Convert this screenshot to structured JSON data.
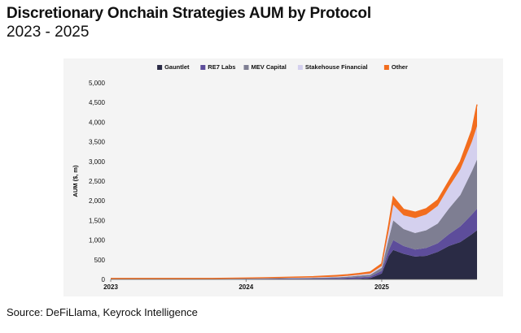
{
  "header": {
    "title": "Discretionary Onchain Strategies AUM by Protocol",
    "subtitle": "2023 - 2025"
  },
  "footer": {
    "source": "Source: DeFiLlama, Keyrock Intelligence"
  },
  "chart_data": {
    "type": "area",
    "stacked": true,
    "ylabel": "AUM ($, m)",
    "xlabel": "",
    "ylim": [
      0,
      5000
    ],
    "yticks": [
      0,
      500,
      1000,
      1500,
      2000,
      2500,
      3000,
      3500,
      4000,
      4500,
      5000
    ],
    "ytick_labels": [
      "0",
      "500",
      "1,000",
      "1,500",
      "2,000",
      "2,500",
      "3,000",
      "3,500",
      "4,000",
      "4,500",
      "5,000"
    ],
    "xlim": [
      "2023-01-01",
      "2025-09-15"
    ],
    "xticks": [
      "2023-01-01",
      "2024-01-01",
      "2025-01-01"
    ],
    "xtick_labels": [
      "2023",
      "2024",
      "2025"
    ],
    "grid": false,
    "legend_position": "top",
    "x": [
      "2023-01-01",
      "2023-07-01",
      "2023-10-01",
      "2024-01-01",
      "2024-04-01",
      "2024-07-01",
      "2024-09-01",
      "2024-10-01",
      "2024-11-01",
      "2024-12-01",
      "2025-01-01",
      "2025-01-20",
      "2025-02-01",
      "2025-03-01",
      "2025-04-01",
      "2025-05-01",
      "2025-06-01",
      "2025-07-01",
      "2025-08-01",
      "2025-09-01",
      "2025-09-15"
    ],
    "series": [
      {
        "name": "Gauntlet",
        "color": "#2a2b45",
        "values": [
          5,
          5,
          5,
          5,
          5,
          5,
          5,
          10,
          15,
          30,
          150,
          600,
          750,
          650,
          580,
          600,
          700,
          850,
          950,
          1150,
          1250
        ]
      },
      {
        "name": "RE7 Labs",
        "color": "#5d4d9b",
        "values": [
          5,
          5,
          5,
          10,
          15,
          20,
          25,
          30,
          40,
          40,
          70,
          150,
          250,
          200,
          180,
          200,
          220,
          300,
          400,
          500,
          550
        ]
      },
      {
        "name": "MEV Capital",
        "color": "#7e7e92",
        "values": [
          3,
          3,
          3,
          5,
          10,
          15,
          25,
          30,
          40,
          50,
          80,
          300,
          500,
          430,
          420,
          450,
          500,
          650,
          800,
          1100,
          1250
        ]
      },
      {
        "name": "Stakehouse Financial",
        "color": "#d4d0ee",
        "values": [
          2,
          2,
          2,
          5,
          5,
          10,
          15,
          20,
          25,
          30,
          40,
          200,
          400,
          350,
          380,
          400,
          450,
          550,
          650,
          750,
          850
        ]
      },
      {
        "name": "Other",
        "color": "#f26d1e",
        "values": [
          10,
          10,
          10,
          10,
          15,
          20,
          30,
          30,
          30,
          40,
          60,
          150,
          200,
          150,
          150,
          150,
          150,
          150,
          200,
          300,
          550
        ]
      }
    ]
  }
}
